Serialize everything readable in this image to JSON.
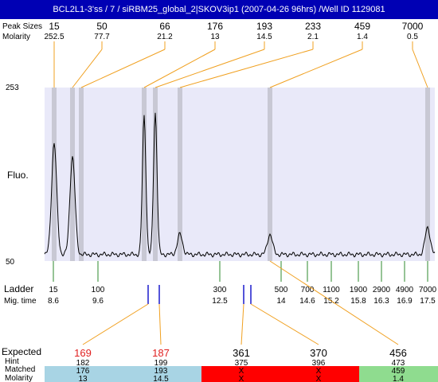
{
  "title": "BCL2L1-3'ss / 7 / siRBM25_global_2|SKOV3ip1 (2007-04-26 96hrs) /Well ID 1129081",
  "labels": {
    "peak_sizes": "Peak Sizes",
    "molarity": "Molarity",
    "fluo": "Fluo.",
    "ladder": "Ladder",
    "mig_time": "Mig. time",
    "expected": "Expected",
    "hint": "Hint",
    "matched": "Matched",
    "molarity_bottom": "Molarity"
  },
  "colors": {
    "plot_bg": "#e9e9f9",
    "band": "#c8c8d4",
    "orange": "#f0a020",
    "green": "#2c8a2c",
    "blue": "#1a1acc",
    "expected_red": "#e02020",
    "cell_blue": "#a8d4e4",
    "cell_red": "#ff0000",
    "cell_green": "#8fdc8f"
  },
  "chart_data": {
    "type": "line",
    "y_axis": {
      "min": 50,
      "max": 253,
      "ticks": [
        "253",
        "50"
      ]
    },
    "peaks": [
      {
        "size": "15",
        "molarity": "252.5"
      },
      {
        "size": "50",
        "molarity": "77.7"
      },
      {
        "size": "66",
        "molarity": "21.2"
      },
      {
        "size": "176",
        "molarity": "13"
      },
      {
        "size": "193",
        "molarity": "14.5"
      },
      {
        "size": "233",
        "molarity": "2.1"
      },
      {
        "size": "459",
        "molarity": "1.4"
      },
      {
        "size": "7000",
        "molarity": "0.5"
      }
    ],
    "trace_peaks": [
      {
        "pos": 0.05,
        "height": 0.66
      },
      {
        "pos": 0.12,
        "height": 0.58
      },
      {
        "pos": 0.275,
        "height": 0.82
      },
      {
        "pos": 0.302,
        "height": 0.84
      },
      {
        "pos": 0.38,
        "height": 0.12
      },
      {
        "pos": 0.58,
        "height": 0.12
      },
      {
        "pos": 0.963,
        "height": 0.16
      }
    ],
    "ladder": [
      {
        "size": "15",
        "time": "8.6"
      },
      {
        "size": "100",
        "time": "9.6"
      },
      {
        "size": "300",
        "time": "12.5"
      },
      {
        "size": "500",
        "time": "14"
      },
      {
        "size": "700",
        "time": "14.6"
      },
      {
        "size": "1100",
        "time": "15.2"
      },
      {
        "size": "1900",
        "time": "15.8"
      },
      {
        "size": "2900",
        "time": "16.3"
      },
      {
        "size": "4900",
        "time": "16.9"
      },
      {
        "size": "7000",
        "time": "17.5"
      }
    ],
    "expected": [
      {
        "expected": "169",
        "hint": "182",
        "matched": "176",
        "molarity": "13",
        "status": "match"
      },
      {
        "expected": "187",
        "hint": "199",
        "matched": "193",
        "molarity": "14.5",
        "status": "match"
      },
      {
        "expected": "361",
        "hint": "375",
        "matched": "X",
        "molarity": "X",
        "status": "missing"
      },
      {
        "expected": "370",
        "hint": "396",
        "matched": "X",
        "molarity": "X",
        "status": "missing"
      },
      {
        "expected": "456",
        "hint": "473",
        "matched": "459",
        "molarity": "1.4",
        "status": "found"
      }
    ]
  }
}
